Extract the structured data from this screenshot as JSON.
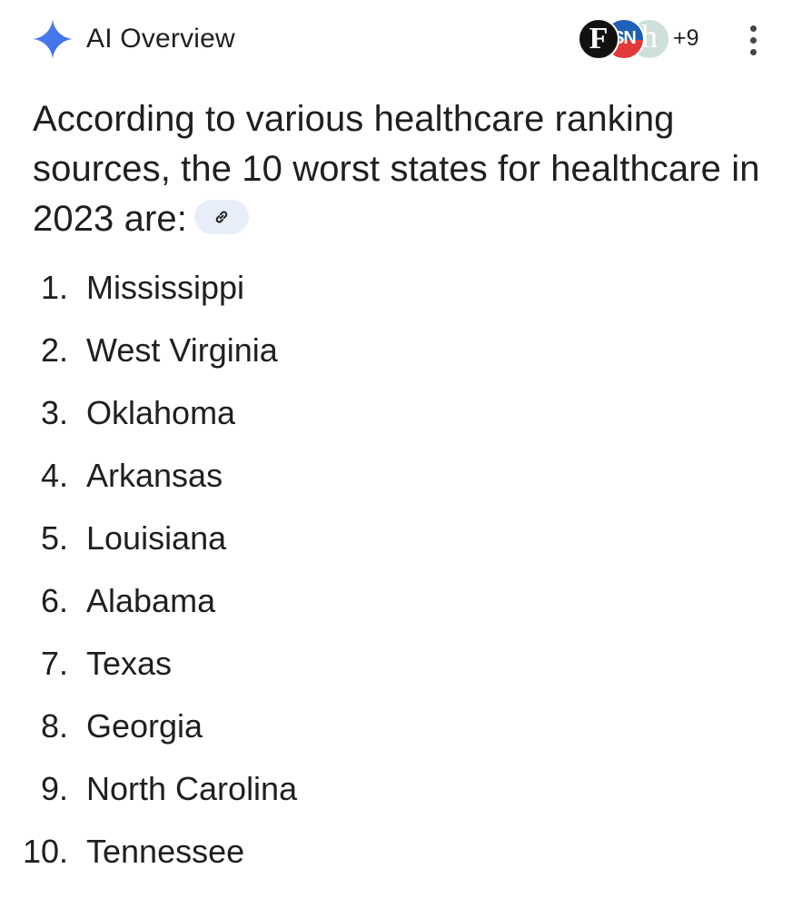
{
  "header": {
    "icon": "sparkle-icon",
    "title": "AI Overview",
    "sources": [
      {
        "label": "F",
        "icon": "source-f-logo"
      },
      {
        "label": "SN",
        "icon": "source-sn-logo"
      },
      {
        "label": "h",
        "icon": "source-h-logo"
      }
    ],
    "more_sources": "+9",
    "menu_icon": "more-vert-icon"
  },
  "intro": {
    "text": "According to various healthcare ranking sources, the 10 worst states for healthcare in 2023 are:",
    "link_icon": "link-icon"
  },
  "states": [
    {
      "num": "1.",
      "name": "Mississippi"
    },
    {
      "num": "2.",
      "name": "West Virginia"
    },
    {
      "num": "3.",
      "name": "Oklahoma"
    },
    {
      "num": "4.",
      "name": "Arkansas"
    },
    {
      "num": "5.",
      "name": "Louisiana"
    },
    {
      "num": "6.",
      "name": "Alabama"
    },
    {
      "num": "7.",
      "name": "Texas"
    },
    {
      "num": "8.",
      "name": "Georgia"
    },
    {
      "num": "9.",
      "name": "North Carolina"
    },
    {
      "num": "10.",
      "name": "Tennessee"
    }
  ],
  "colors": {
    "sparkle": "#4285f4",
    "text": "#1f1f1f",
    "chip_bg": "#e8eef9"
  }
}
